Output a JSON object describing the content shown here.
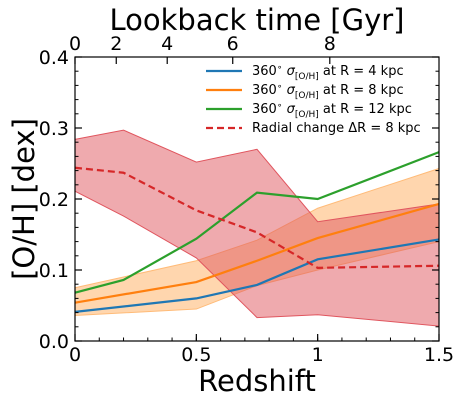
{
  "chart_data": {
    "type": "line",
    "xlabel": "Redshift",
    "ylabel": "[O/H] [dex]",
    "top_xlabel": "Lookback time [Gyr]",
    "xlim": [
      0,
      1.5
    ],
    "ylim": [
      0,
      0.4
    ],
    "x_ticks": [
      0,
      0.5,
      1,
      1.5
    ],
    "x_tick_labels": [
      "0",
      "0.5",
      "1",
      "1.5"
    ],
    "y_ticks": [
      0,
      0.1,
      0.2,
      0.3,
      0.4
    ],
    "y_tick_labels": [
      "0.0",
      "0.1",
      "0.2",
      "0.3",
      "0.4"
    ],
    "top_ticks": [
      {
        "z": 0,
        "label": "0"
      },
      {
        "z": 0.17,
        "label": "2"
      },
      {
        "z": 0.38,
        "label": "4"
      },
      {
        "z": 0.65,
        "label": "6"
      },
      {
        "z": 1.05,
        "label": "8"
      }
    ],
    "legend_position": "top-right",
    "series": [
      {
        "name": "360° σ[O/H] at R = 4 kpc",
        "label_prefix": "360",
        "label_suffix": " at R = 4 kpc",
        "color": "#1f77b4",
        "style": "solid",
        "x": [
          0,
          0.5,
          0.75,
          1.0,
          1.5
        ],
        "y": [
          0.041,
          0.06,
          0.079,
          0.115,
          0.143
        ]
      },
      {
        "name": "360° σ[O/H] at R = 8 kpc",
        "label_prefix": "360",
        "label_suffix": " at R = 8 kpc",
        "color": "#ff7f0e",
        "style": "solid",
        "x": [
          0,
          0.5,
          0.75,
          1.0,
          1.5
        ],
        "y": [
          0.054,
          0.083,
          0.113,
          0.145,
          0.193
        ]
      },
      {
        "name": "360° σ[O/H] at R = 12 kpc",
        "label_prefix": "360",
        "label_suffix": " at R = 12 kpc",
        "color": "#2ca02c",
        "style": "solid",
        "x": [
          0,
          0.2,
          0.5,
          0.75,
          1.0,
          1.5
        ],
        "y": [
          0.068,
          0.086,
          0.144,
          0.209,
          0.2,
          0.266
        ]
      },
      {
        "name": "Radial change ΔR = 8 kpc",
        "color": "#d62728",
        "style": "dashed",
        "x": [
          0,
          0.2,
          0.5,
          0.75,
          1.0,
          1.5
        ],
        "y": [
          0.244,
          0.237,
          0.184,
          0.153,
          0.103,
          0.106
        ]
      }
    ],
    "bands": [
      {
        "color": "#ffbb78",
        "x": [
          0,
          0.5,
          0.75,
          1.0,
          1.5
        ],
        "upper": [
          0.075,
          0.113,
          0.142,
          0.187,
          0.243
        ],
        "lower": [
          0.036,
          0.045,
          0.078,
          0.1,
          0.14
        ]
      },
      {
        "color": "#e0555e",
        "x": [
          0,
          0.2,
          0.5,
          0.75,
          1.0,
          1.5
        ],
        "upper": [
          0.284,
          0.297,
          0.252,
          0.27,
          0.168,
          0.193
        ],
        "lower": [
          0.211,
          0.176,
          0.117,
          0.033,
          0.037,
          0.021
        ]
      }
    ]
  }
}
